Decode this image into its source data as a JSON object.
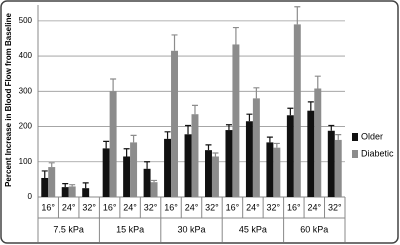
{
  "chart_data": {
    "type": "bar",
    "y_label": "Percent Increase in Blood Flow from Baseline",
    "categories": [
      "16°",
      "24°",
      "32°",
      "16°",
      "24°",
      "32°",
      "16°",
      "24°",
      "32°",
      "16°",
      "24°",
      "32°",
      "16°",
      "24°",
      "32°"
    ],
    "groups": [
      "7.5 kPa",
      "15 kPa",
      "30 kPa",
      "45 kPa",
      "60 kPa"
    ],
    "series": [
      {
        "name": "Older",
        "color": "#111111",
        "values": [
          54,
          28,
          25,
          138,
          115,
          80,
          165,
          178,
          133,
          190,
          215,
          155,
          232,
          245,
          188
        ],
        "errors": [
          20,
          10,
          15,
          20,
          22,
          20,
          20,
          25,
          15,
          15,
          20,
          15,
          20,
          25,
          15
        ]
      },
      {
        "name": "Diabetic",
        "color": "#8c8c8c",
        "values": [
          85,
          30,
          null,
          300,
          155,
          42,
          415,
          235,
          115,
          433,
          280,
          140,
          490,
          308,
          162
        ],
        "errors": [
          12,
          5,
          null,
          35,
          20,
          5,
          45,
          25,
          10,
          48,
          30,
          12,
          50,
          35,
          15
        ]
      }
    ],
    "ylim": [
      0,
      545
    ],
    "yticks": [
      0,
      100,
      200,
      300,
      400,
      500
    ],
    "grid": true,
    "legend": "right"
  }
}
